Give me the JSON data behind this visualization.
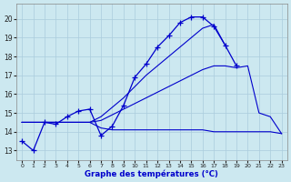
{
  "title": "Graphe des températures (°C)",
  "bg_color": "#cce8f0",
  "grid_color": "#aaccdd",
  "line_color": "#0000cc",
  "hours": [
    0,
    1,
    2,
    3,
    4,
    5,
    6,
    7,
    8,
    9,
    10,
    11,
    12,
    13,
    14,
    15,
    16,
    17,
    18,
    19,
    20,
    21,
    22,
    23
  ],
  "temp_obs": [
    13.5,
    13.0,
    14.5,
    14.4,
    14.8,
    15.1,
    15.2,
    13.8,
    14.3,
    15.4,
    16.9,
    17.6,
    18.5,
    19.1,
    19.8,
    20.1,
    20.1,
    19.6,
    18.6,
    17.5,
    null,
    null,
    null,
    null
  ],
  "temp_min": [
    14.5,
    14.5,
    14.5,
    14.5,
    14.5,
    14.5,
    14.5,
    14.2,
    14.1,
    14.1,
    14.1,
    14.1,
    14.1,
    14.1,
    14.1,
    14.1,
    14.1,
    14.0,
    14.0,
    14.0,
    14.0,
    14.0,
    14.0,
    13.9
  ],
  "temp_max": [
    14.5,
    14.5,
    14.5,
    14.5,
    14.5,
    14.5,
    14.5,
    14.8,
    15.3,
    15.8,
    16.4,
    17.0,
    17.5,
    18.0,
    18.5,
    19.0,
    19.5,
    19.7,
    18.6,
    null,
    null,
    null,
    null,
    null
  ],
  "temp_trend": [
    14.5,
    14.5,
    14.5,
    14.5,
    14.5,
    14.5,
    14.5,
    14.6,
    14.9,
    15.2,
    15.5,
    15.8,
    16.1,
    16.4,
    16.7,
    17.0,
    17.3,
    17.5,
    17.5,
    17.4,
    17.5,
    15.0,
    14.8,
    13.9
  ],
  "ylim": [
    12.5,
    20.8
  ],
  "yticks": [
    13,
    14,
    15,
    16,
    17,
    18,
    19,
    20
  ],
  "xlim": [
    -0.5,
    23.5
  ],
  "xticks": [
    0,
    1,
    2,
    3,
    4,
    5,
    6,
    7,
    8,
    9,
    10,
    11,
    12,
    13,
    14,
    15,
    16,
    17,
    18,
    19,
    20,
    21,
    22,
    23
  ],
  "figsize": [
    3.2,
    2.0
  ],
  "dpi": 100
}
